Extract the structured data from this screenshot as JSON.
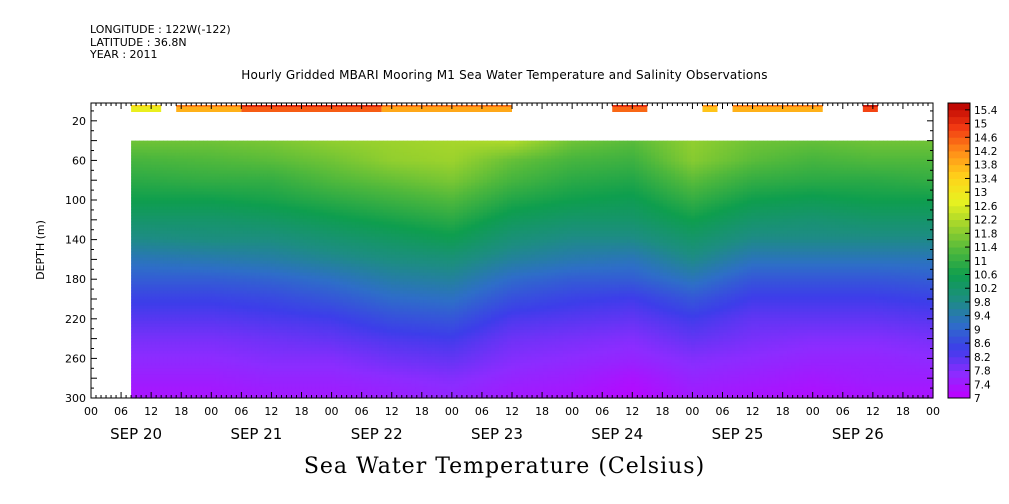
{
  "header": {
    "longitude": "LONGITUDE : 122W(-122)",
    "latitude": "LATITUDE : 36.8N",
    "year": "YEAR : 2011"
  },
  "chart_data": {
    "type": "heatmap",
    "title": "Hourly Gridded MBARI Mooring M1 Sea Water Temperature and Salinity Observations",
    "caption": "Sea Water Temperature (Celsius)",
    "ylabel": "DEPTH (m)",
    "ylim": [
      300,
      2
    ],
    "xlim": [
      "2011-09-20T00:00",
      "2011-09-27T00:00"
    ],
    "x_tick_labels": [
      "00",
      "06",
      "12",
      "18",
      "00",
      "06",
      "12",
      "18",
      "00",
      "06",
      "12",
      "18",
      "00",
      "06",
      "12",
      "18",
      "00",
      "06",
      "12",
      "18",
      "00",
      "06",
      "12",
      "18",
      "00",
      "06",
      "12",
      "18",
      "00"
    ],
    "date_labels": [
      "SEP 20",
      "SEP 21",
      "SEP 22",
      "SEP 23",
      "SEP 24",
      "SEP 25",
      "SEP 26"
    ],
    "y_ticks": [
      20,
      60,
      100,
      140,
      180,
      220,
      260,
      300
    ],
    "colorbar": {
      "min": 7,
      "max": 15.6,
      "step": 0.2,
      "labels": [
        "15.4",
        "15",
        "14.6",
        "14.2",
        "13.8",
        "13.4",
        "13",
        "12.6",
        "12.2",
        "11.8",
        "11.4",
        "11",
        "10.6",
        "10.2",
        "9.8",
        "9.4",
        "9",
        "8.6",
        "8.2",
        "7.8",
        "7.4",
        "7"
      ],
      "colors": [
        "#bf00ff",
        "#8c2cff",
        "#3d3dea",
        "#2e6ec8",
        "#1d8d82",
        "#0e9e4e",
        "#4fb83c",
        "#9ed32c",
        "#e8f220",
        "#ffd21a",
        "#ff8f18",
        "#f23a12",
        "#b80000"
      ]
    },
    "data_start": "2011-09-20T08:00",
    "surface_depth_m": 2,
    "surface_segments": [
      {
        "start": "2011-09-20T08:00",
        "end": "2011-09-20T14:00",
        "temp": 12.8
      },
      {
        "start": "2011-09-20T17:00",
        "end": "2011-09-21T06:00",
        "temp": 13.8
      },
      {
        "start": "2011-09-21T06:00",
        "end": "2011-09-22T10:00",
        "temp": 14.6
      },
      {
        "start": "2011-09-22T10:00",
        "end": "2011-09-23T12:00",
        "temp": 13.9
      },
      {
        "start": "2011-09-24T08:00",
        "end": "2011-09-24T15:00",
        "temp": 14.5
      },
      {
        "start": "2011-09-25T02:00",
        "end": "2011-09-25T05:00",
        "temp": 13.6
      },
      {
        "start": "2011-09-25T08:00",
        "end": "2011-09-26T02:00",
        "temp": 13.8
      },
      {
        "start": "2011-09-26T10:00",
        "end": "2011-09-26T13:00",
        "temp": 14.8
      }
    ],
    "profile_depths_m": [
      40,
      60,
      80,
      100,
      120,
      140,
      160,
      180,
      200,
      220,
      240,
      260,
      280,
      300
    ],
    "profile_times": [
      "2011-09-20T08:00",
      "2011-09-21T00:00",
      "2011-09-21T12:00",
      "2011-09-22T00:00",
      "2011-09-22T12:00",
      "2011-09-23T00:00",
      "2011-09-23T12:00",
      "2011-09-24T00:00",
      "2011-09-24T12:00",
      "2011-09-25T00:00",
      "2011-09-25T12:00",
      "2011-09-26T00:00",
      "2011-09-26T12:00",
      "2011-09-27T00:00"
    ],
    "temperature": [
      [
        11.6,
        11.6,
        11.7,
        11.9,
        12.0,
        12.1,
        12.2,
        11.6,
        11.4,
        11.9,
        11.6,
        11.5,
        11.6,
        11.6
      ],
      [
        11.2,
        11.3,
        11.4,
        11.6,
        11.9,
        12.0,
        11.5,
        11.2,
        11.1,
        11.8,
        11.4,
        11.2,
        11.3,
        11.3
      ],
      [
        10.9,
        11.0,
        11.0,
        11.3,
        11.5,
        11.7,
        11.2,
        10.9,
        10.8,
        11.4,
        11.0,
        10.9,
        10.9,
        11.0
      ],
      [
        10.6,
        10.6,
        10.7,
        10.9,
        11.1,
        11.3,
        10.8,
        10.6,
        10.5,
        11.0,
        10.6,
        10.5,
        10.6,
        10.6
      ],
      [
        10.2,
        10.2,
        10.3,
        10.5,
        10.7,
        10.9,
        10.4,
        10.2,
        10.2,
        10.6,
        10.2,
        10.1,
        10.2,
        10.2
      ],
      [
        9.8,
        9.9,
        9.9,
        10.1,
        10.3,
        10.5,
        10.0,
        9.8,
        9.8,
        10.2,
        9.8,
        9.8,
        9.8,
        9.8
      ],
      [
        9.3,
        9.4,
        9.5,
        9.7,
        9.9,
        10.0,
        9.6,
        9.4,
        9.3,
        9.8,
        9.3,
        9.3,
        9.3,
        9.3
      ],
      [
        8.9,
        8.9,
        9.0,
        9.2,
        9.5,
        9.6,
        9.1,
        8.9,
        8.9,
        9.3,
        8.8,
        8.8,
        8.8,
        8.9
      ],
      [
        8.5,
        8.5,
        8.6,
        8.8,
        9.1,
        9.2,
        8.7,
        8.5,
        8.4,
        8.8,
        8.4,
        8.4,
        8.4,
        8.5
      ],
      [
        8.2,
        8.2,
        8.3,
        8.4,
        8.7,
        8.8,
        8.3,
        8.2,
        8.1,
        8.4,
        8.1,
        8.1,
        8.1,
        8.2
      ],
      [
        7.9,
        7.9,
        8.0,
        8.1,
        8.3,
        8.4,
        8.0,
        7.9,
        7.8,
        8.1,
        7.9,
        7.8,
        7.8,
        7.9
      ],
      [
        7.7,
        7.7,
        7.8,
        7.8,
        8.0,
        8.1,
        7.8,
        7.7,
        7.6,
        7.8,
        7.7,
        7.6,
        7.6,
        7.7
      ],
      [
        7.5,
        7.5,
        7.6,
        7.6,
        7.7,
        7.8,
        7.6,
        7.5,
        7.3,
        7.6,
        7.5,
        7.4,
        7.5,
        7.5
      ],
      [
        7.3,
        7.3,
        7.4,
        7.4,
        7.5,
        7.6,
        7.4,
        7.3,
        7.1,
        7.4,
        7.3,
        7.2,
        7.3,
        7.3
      ]
    ]
  }
}
